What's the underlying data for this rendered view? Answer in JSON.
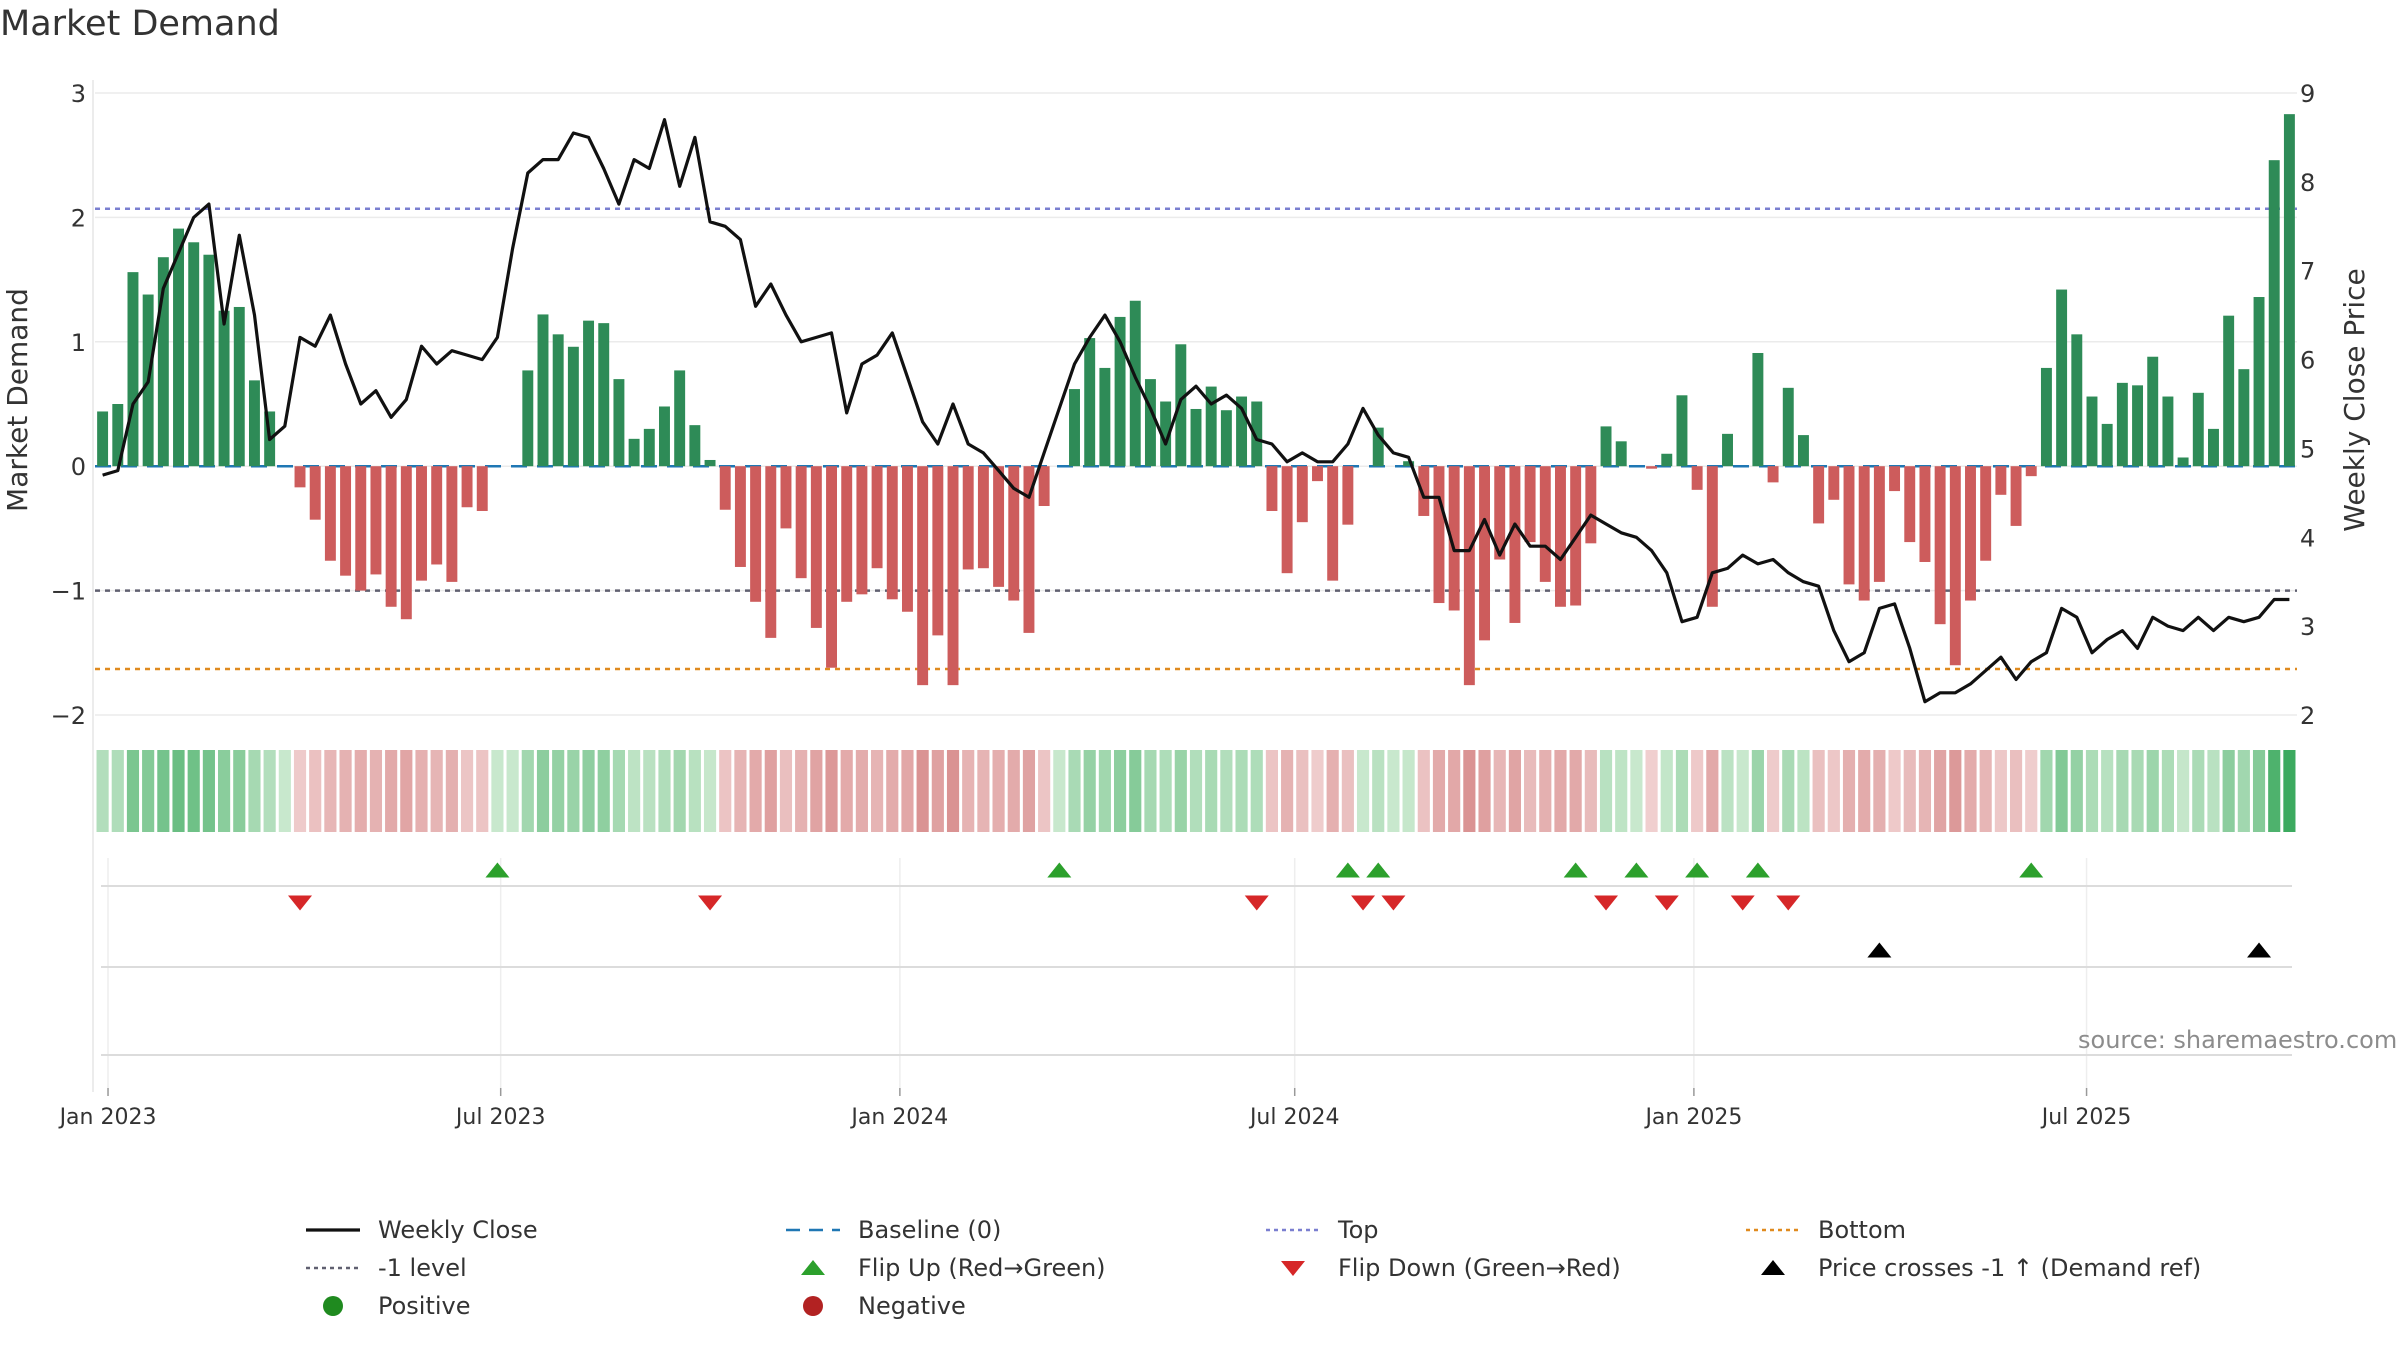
{
  "page": {
    "title": "Market Demand",
    "source": "source: sharemaestro.com"
  },
  "colors": {
    "positive_bar": "#2e8b57",
    "negative_bar": "#cd5c5c",
    "price_line": "#111111",
    "baseline": "#1f77b4",
    "top": "#7a7fd0",
    "minus1": "#606070",
    "bottom": "#e08a1e",
    "flip_up": "#2ca02c",
    "flip_down": "#d62728",
    "cross": "#000000",
    "legend_positive": "#1f8a1f",
    "legend_negative": "#b22222"
  },
  "chart_data": {
    "type": "bar",
    "title": "Market Demand",
    "ylabel": "Market Demand",
    "y2label": "Weekly Close Price",
    "ylim": [
      -2,
      3
    ],
    "y2lim": [
      2,
      9
    ],
    "yticks": [
      -2,
      -1,
      0,
      1,
      2,
      3
    ],
    "y2ticks": [
      2,
      3,
      4,
      5,
      6,
      7,
      8,
      9
    ],
    "x_start": "2022-12-26",
    "x_end": "2025-10-06",
    "xticks": [
      {
        "label": "Jan 2023",
        "date": "2023-01-01"
      },
      {
        "label": "Jul 2023",
        "date": "2023-07-01"
      },
      {
        "label": "Jan 2024",
        "date": "2024-01-01"
      },
      {
        "label": "Jul 2024",
        "date": "2024-07-01"
      },
      {
        "label": "Jan 2025",
        "date": "2025-01-01"
      },
      {
        "label": "Jul 2025",
        "date": "2025-07-01"
      }
    ],
    "reference_lines": {
      "baseline": 0,
      "top": 2.07,
      "minus1": -1,
      "bottom": -1.63
    },
    "demand": [
      0.44,
      0.5,
      1.56,
      1.38,
      1.68,
      1.91,
      1.8,
      1.7,
      1.25,
      1.28,
      0.69,
      0.44,
      0,
      -0.17,
      -0.43,
      -0.76,
      -0.88,
      -1.0,
      -0.87,
      -1.13,
      -1.23,
      -0.92,
      -0.79,
      -0.93,
      -0.33,
      -0.36,
      0,
      0,
      0.77,
      1.22,
      1.06,
      0.96,
      1.17,
      1.15,
      0.7,
      0.22,
      0.3,
      0.48,
      0.77,
      0.33,
      0.05,
      -0.35,
      -0.81,
      -1.09,
      -1.38,
      -0.5,
      -0.9,
      -1.3,
      -1.62,
      -1.09,
      -1.03,
      -0.82,
      -1.07,
      -1.17,
      -1.76,
      -1.36,
      -1.76,
      -0.83,
      -0.82,
      -0.97,
      -1.08,
      -1.34,
      -0.32,
      0,
      0.62,
      1.03,
      0.79,
      1.2,
      1.33,
      0.7,
      0.52,
      0.98,
      0.46,
      0.64,
      0.45,
      0.56,
      0.52,
      -0.36,
      -0.86,
      -0.45,
      -0.12,
      -0.92,
      -0.47,
      0,
      0.31,
      0,
      0.04,
      -0.4,
      -1.1,
      -1.16,
      -1.76,
      -1.4,
      -0.75,
      -1.26,
      -0.61,
      -0.93,
      -1.13,
      -1.12,
      -0.62,
      0.32,
      0.2,
      0,
      -0.02,
      0.1,
      0.57,
      -0.19,
      -1.13,
      0.26,
      0,
      0.91,
      -0.13,
      0.63,
      0.25,
      -0.46,
      -0.27,
      -0.95,
      -1.08,
      -0.93,
      -0.2,
      -0.61,
      -0.77,
      -1.27,
      -1.6,
      -1.08,
      -0.76,
      -0.23,
      -0.48,
      -0.08,
      0.79,
      1.42,
      1.06,
      0.56,
      0.34,
      0.67,
      0.65,
      0.88,
      0.56,
      0.07,
      0.59,
      0.3,
      1.21,
      0.78,
      1.36,
      2.46,
      2.83
    ],
    "price": [
      4.7,
      4.75,
      5.5,
      5.75,
      6.8,
      7.2,
      7.6,
      7.75,
      6.4,
      7.4,
      6.5,
      5.1,
      5.25,
      6.25,
      6.15,
      6.5,
      5.95,
      5.5,
      5.65,
      5.35,
      5.55,
      6.15,
      5.95,
      6.1,
      6.05,
      6.0,
      6.25,
      7.25,
      8.1,
      8.25,
      8.25,
      8.55,
      8.5,
      8.15,
      7.75,
      8.25,
      8.15,
      8.7,
      7.95,
      8.5,
      7.55,
      7.5,
      7.35,
      6.6,
      6.85,
      6.5,
      6.2,
      6.25,
      6.3,
      5.4,
      5.95,
      6.05,
      6.3,
      5.8,
      5.3,
      5.05,
      5.5,
      5.05,
      4.95,
      4.75,
      4.55,
      4.45,
      4.95,
      5.45,
      5.95,
      6.25,
      6.5,
      6.2,
      5.8,
      5.45,
      5.05,
      5.55,
      5.7,
      5.5,
      5.6,
      5.45,
      5.1,
      5.05,
      4.85,
      4.95,
      4.85,
      4.85,
      5.05,
      5.45,
      5.15,
      4.95,
      4.9,
      4.45,
      4.45,
      3.85,
      3.85,
      4.2,
      3.8,
      4.15,
      3.9,
      3.9,
      3.75,
      4.0,
      4.25,
      4.15,
      4.05,
      4.0,
      3.85,
      3.6,
      3.05,
      3.1,
      3.6,
      3.65,
      3.8,
      3.7,
      3.75,
      3.6,
      3.5,
      3.45,
      2.95,
      2.6,
      2.7,
      3.2,
      3.25,
      2.75,
      2.15,
      2.25,
      2.25,
      2.35,
      2.5,
      2.65,
      2.4,
      2.6,
      2.7,
      3.2,
      3.1,
      2.7,
      2.85,
      2.95,
      2.75,
      3.1,
      3.0,
      2.95,
      3.1,
      2.95,
      3.1,
      3.05,
      3.1,
      3.3,
      3.3
    ]
  },
  "strip_rows": {
    "flip_up_idx": [
      26,
      63,
      82,
      84,
      97,
      101,
      105,
      109,
      127
    ],
    "flip_down_idx": [
      13,
      40,
      76,
      83,
      85,
      99,
      103,
      108,
      111
    ],
    "cross_idx": [
      117,
      142
    ]
  },
  "legend": [
    {
      "key": "weekly_close",
      "label": "Weekly Close",
      "symbol": "solid",
      "color_key": "price_line"
    },
    {
      "key": "baseline",
      "label": "Baseline (0)",
      "symbol": "dashed",
      "color_key": "baseline"
    },
    {
      "key": "top",
      "label": "Top",
      "symbol": "dotted",
      "color_key": "top"
    },
    {
      "key": "bottom",
      "label": "Bottom",
      "symbol": "dotted",
      "color_key": "bottom"
    },
    {
      "key": "minus1",
      "label": "-1 level",
      "symbol": "dotted",
      "color_key": "minus1"
    },
    {
      "key": "flip_up",
      "label": "Flip Up (Red→Green)",
      "symbol": "tri-up",
      "color_key": "flip_up"
    },
    {
      "key": "flip_down",
      "label": "Flip Down (Green→Red)",
      "symbol": "tri-down",
      "color_key": "flip_down"
    },
    {
      "key": "cross",
      "label": "Price crosses -1 ↑ (Demand ref)",
      "symbol": "tri-up",
      "color_key": "cross"
    },
    {
      "key": "positive",
      "label": "Positive",
      "symbol": "circle",
      "color_key": "legend_positive"
    },
    {
      "key": "negative",
      "label": "Negative",
      "symbol": "circle",
      "color_key": "legend_negative"
    }
  ]
}
